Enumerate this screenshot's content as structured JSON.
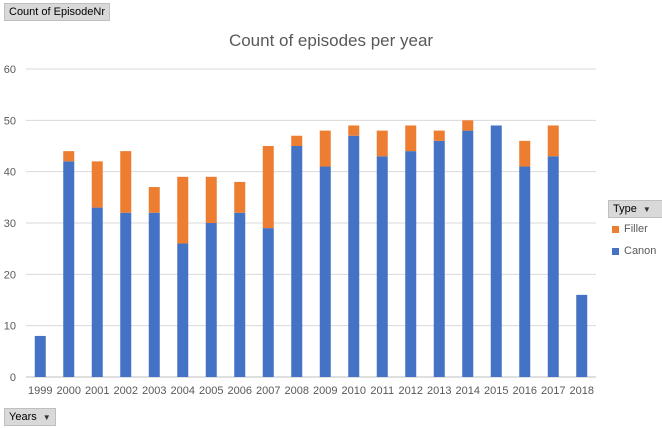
{
  "field_buttons": {
    "values": "Count of EpisodeNr",
    "axis": "Years",
    "legend": "Type"
  },
  "chart_data": {
    "type": "bar",
    "stacked": true,
    "title": "Count of episodes per year",
    "categories": [
      "1999",
      "2000",
      "2001",
      "2002",
      "2003",
      "2004",
      "2005",
      "2006",
      "2007",
      "2008",
      "2009",
      "2010",
      "2011",
      "2012",
      "2013",
      "2014",
      "2015",
      "2016",
      "2017",
      "2018"
    ],
    "series": [
      {
        "name": "Canon",
        "color": "#4472c4",
        "values": [
          8,
          42,
          33,
          32,
          32,
          26,
          30,
          32,
          29,
          45,
          41,
          47,
          43,
          44,
          46,
          48,
          49,
          41,
          43,
          16
        ]
      },
      {
        "name": "Filler",
        "color": "#ed7d31",
        "values": [
          0,
          2,
          9,
          12,
          5,
          13,
          9,
          6,
          16,
          2,
          7,
          2,
          5,
          5,
          2,
          2,
          0,
          5,
          6,
          0
        ]
      }
    ],
    "ylim": [
      0,
      60
    ],
    "yticks": [
      0,
      10,
      20,
      30,
      40,
      50,
      60
    ],
    "legend": [
      {
        "name": "Filler",
        "color": "#ed7d31"
      },
      {
        "name": "Canon",
        "color": "#4472c4"
      }
    ],
    "legend_position": "right",
    "grid": true
  }
}
